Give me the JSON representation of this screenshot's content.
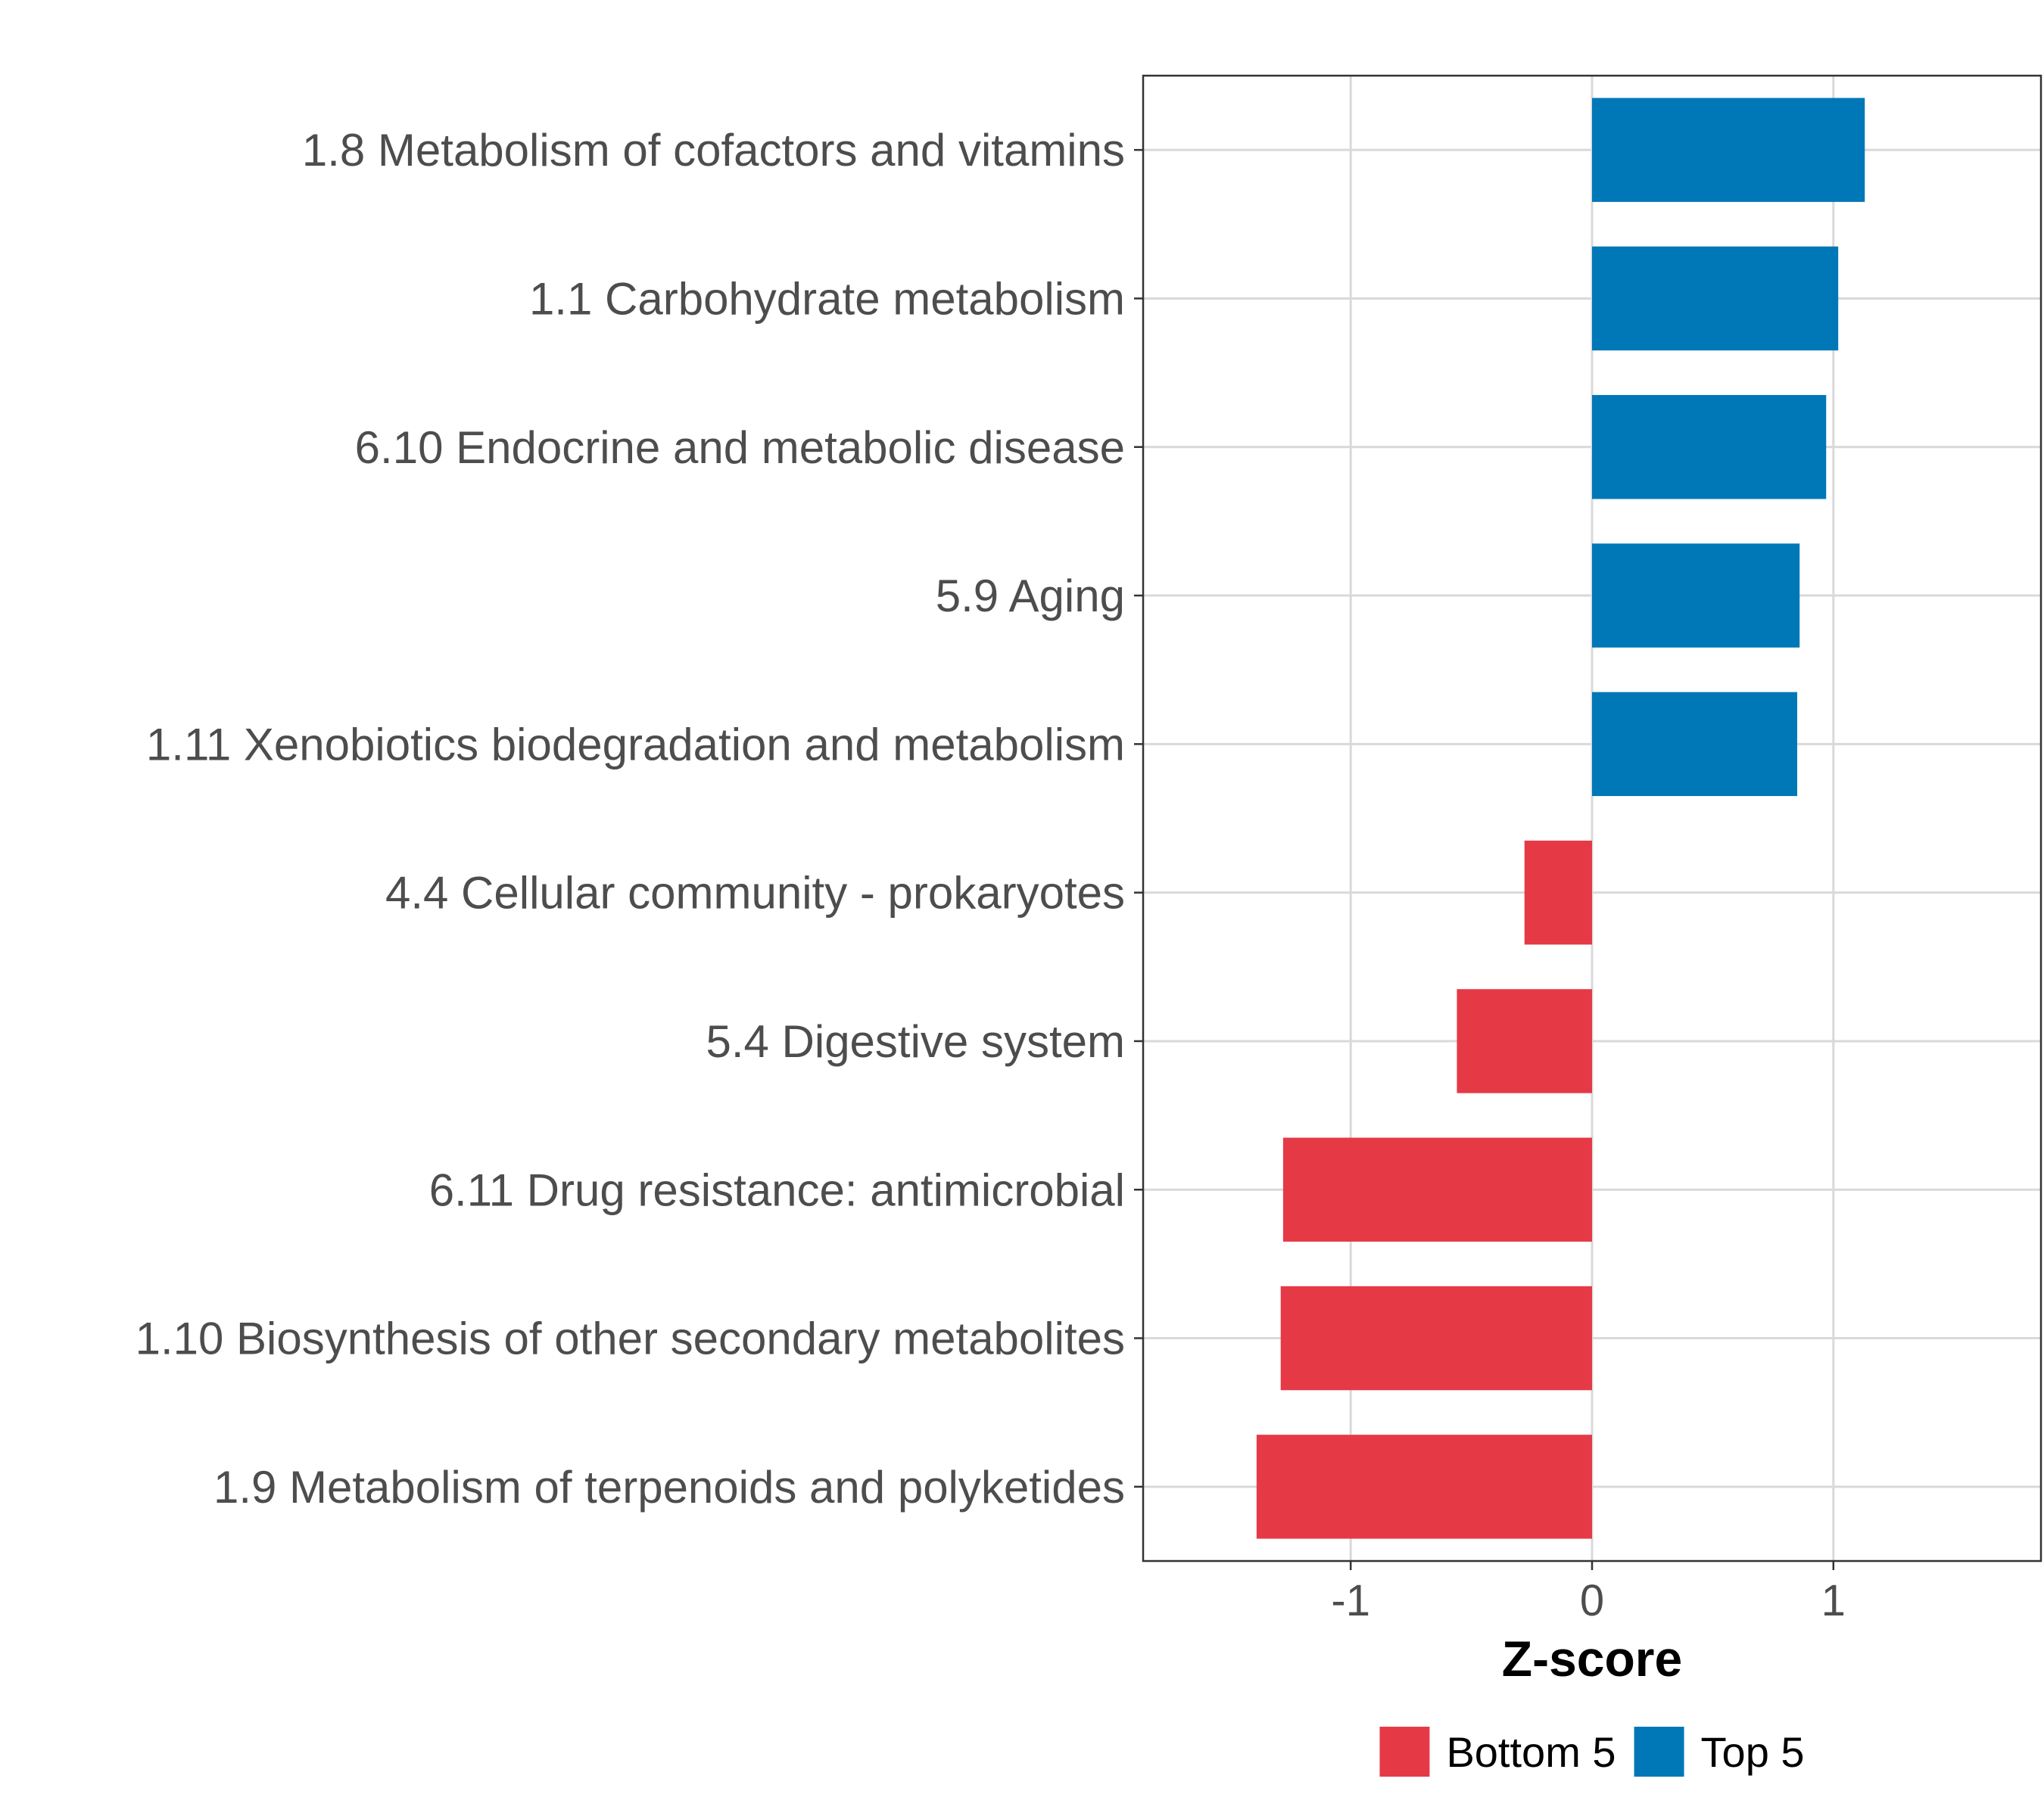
{
  "chart_data": {
    "type": "bar",
    "orientation": "horizontal",
    "title": "",
    "xlabel": "Z-score",
    "ylabel": "",
    "xlim": [
      -1.86,
      1.86
    ],
    "xticks": [
      -1,
      0,
      1
    ],
    "xtick_labels": [
      "-1",
      "0",
      "1"
    ],
    "grid": true,
    "legend_position": "bottom",
    "categories": [
      "1.8 Metabolism of cofactors and vitamins",
      "1.1 Carbohydrate metabolism",
      "6.10 Endocrine and metabolic disease",
      "5.9 Aging",
      "1.11 Xenobiotics biodegradation and metabolism",
      "4.4 Cellular community - prokaryotes",
      "5.4 Digestive system",
      "6.11 Drug resistance: antimicrobial",
      "1.10 Biosynthesis of other secondary metabolites",
      "1.9 Metabolism of terpenoids and polyketides"
    ],
    "values": [
      1.13,
      1.02,
      0.97,
      0.86,
      0.85,
      -0.28,
      -0.56,
      -1.28,
      -1.29,
      -1.39
    ],
    "groups": [
      "Top 5",
      "Top 5",
      "Top 5",
      "Top 5",
      "Top 5",
      "Bottom 5",
      "Bottom 5",
      "Bottom 5",
      "Bottom 5",
      "Bottom 5"
    ],
    "legend": [
      {
        "name": "Bottom 5",
        "color": "#e63946"
      },
      {
        "name": "Top 5",
        "color": "#0077b6"
      }
    ]
  }
}
